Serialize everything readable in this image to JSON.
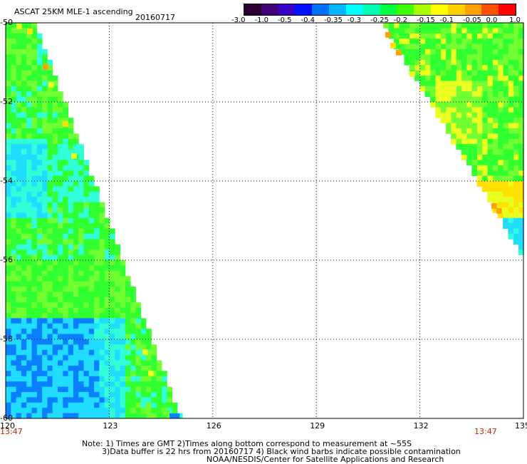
{
  "header": {
    "title": "ASCAT 25KM MLE-1 ascending",
    "date": "20160717"
  },
  "colorbar": {
    "labels": [
      "-3.0",
      "-1.0",
      "-0.5",
      "-0.4",
      "-0.35",
      "-0.3",
      "-0.25",
      "-0.2",
      "-0.15",
      "-0.1",
      "-0.05",
      "0.0",
      "1.0"
    ],
    "colors": [
      "#2a0030",
      "#40007a",
      "#3a00c8",
      "#0010ff",
      "#0070ff",
      "#00b8ff",
      "#00ffff",
      "#00ffb0",
      "#00ff40",
      "#40ff00",
      "#a8ff00",
      "#ffff00",
      "#ffd000",
      "#ffa000",
      "#ff5000",
      "#ff0000"
    ]
  },
  "map": {
    "lon_range": [
      120,
      135
    ],
    "lat_range": [
      -60,
      -50
    ],
    "lon_ticks": [
      "120",
      "123",
      "126",
      "129",
      "132",
      "135"
    ],
    "lat_ticks": [
      "-50",
      "-52",
      "-54",
      "-56",
      "-58",
      "-60"
    ],
    "time_left": "13:47",
    "time_right": "13:47",
    "colors": {
      "blue": "#0a80ff",
      "cyan": "#20dcff",
      "aqua": "#30ffd8",
      "green": "#30ff30",
      "lime": "#70ff30",
      "yellow": "#e8ff20",
      "gold": "#ffe000",
      "orange": "#ffa000"
    }
  },
  "notes": {
    "line1": "Note: 1) Times are GMT 2)Times along bottom correspond to measurement at ~55S",
    "line2": "3)Data buffer is 22 hrs from 20160717 4) Black wind barbs indicate possible contamination",
    "line3": "NOAA/NESDIS/Center for Satellite Applications and Research"
  }
}
